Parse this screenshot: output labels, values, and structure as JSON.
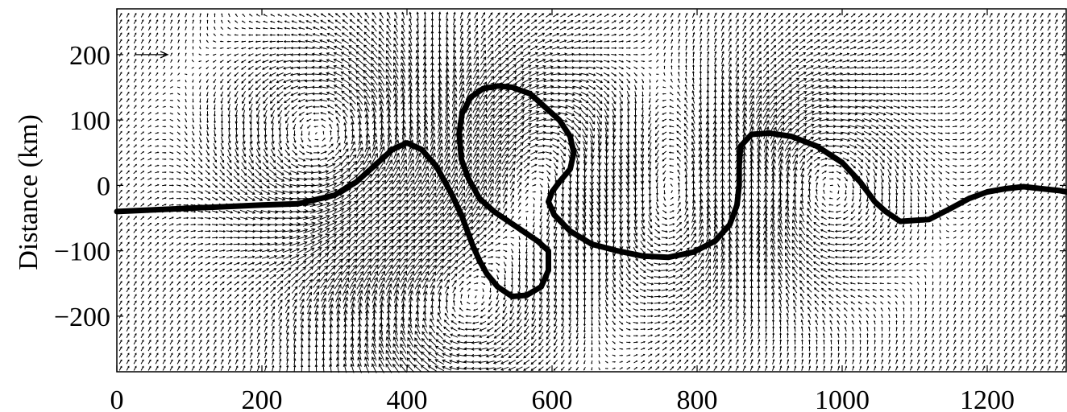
{
  "chart_data": {
    "type": "quiver",
    "title": "",
    "xlabel": "",
    "ylabel": "Distance (km)",
    "xlim": [
      0,
      1310
    ],
    "ylim": [
      -285,
      270
    ],
    "x_ticks": [
      0,
      200,
      400,
      600,
      800,
      1000,
      1200
    ],
    "y_ticks": [
      -200,
      -100,
      0,
      100,
      200
    ],
    "x_tick_labels": [
      "0",
      "200",
      "400",
      "600",
      "800",
      "1000",
      "1200"
    ],
    "y_tick_labels": [
      "−200",
      "−100",
      "0",
      "100",
      "200"
    ],
    "grid": false,
    "colors": {
      "front": "#000000",
      "vectors": "#000000"
    },
    "reference_arrow": {
      "x": [
        25,
        70
      ],
      "y": 200
    },
    "vector_field": {
      "grid_dx": 10,
      "grid_dy": 10,
      "eddies": [
        {
          "x": 300,
          "y": 65,
          "sense": "counterclockwise"
        },
        {
          "x": 460,
          "y": -175,
          "sense": "clockwise"
        },
        {
          "x": 600,
          "y": 25,
          "sense": "clockwise"
        },
        {
          "x": 780,
          "y": -5,
          "sense": "counterclockwise"
        },
        {
          "x": 930,
          "y": 5,
          "sense": "clockwise"
        }
      ]
    },
    "series": [
      {
        "x": [
          0,
          100,
          200,
          250,
          300,
          330,
          360,
          380,
          400,
          420,
          440,
          460,
          475,
          490,
          500,
          510,
          525,
          545,
          565,
          585,
          595,
          595,
          580,
          560,
          540,
          520,
          500,
          485,
          475,
          472,
          476,
          488,
          505,
          525,
          545,
          570,
          590,
          610,
          625,
          630,
          625,
          610,
          600,
          595,
          603,
          625,
          655,
          690,
          725,
          760,
          795,
          825,
          845,
          855,
          858,
          858,
          860,
          875,
          900,
          930,
          965,
          1000,
          1025,
          1045,
          1060,
          1080,
          1120,
          1150,
          1175,
          1200,
          1225,
          1250,
          1275,
          1300,
          1310
        ],
        "y": [
          -40,
          -35,
          -30,
          -28,
          -15,
          5,
          35,
          55,
          65,
          55,
          30,
          -10,
          -45,
          -90,
          -115,
          -135,
          -155,
          -170,
          -168,
          -155,
          -130,
          -100,
          -85,
          -70,
          -55,
          -40,
          -20,
          10,
          40,
          80,
          110,
          135,
          148,
          152,
          150,
          140,
          120,
          100,
          75,
          50,
          25,
          5,
          -10,
          -25,
          -45,
          -70,
          -90,
          -100,
          -108,
          -110,
          -102,
          -85,
          -60,
          -30,
          0,
          30,
          60,
          78,
          80,
          75,
          60,
          35,
          5,
          -25,
          -40,
          -55,
          -52,
          -35,
          -20,
          -10,
          -5,
          -2,
          -5,
          -8,
          -10
        ]
      }
    ]
  }
}
